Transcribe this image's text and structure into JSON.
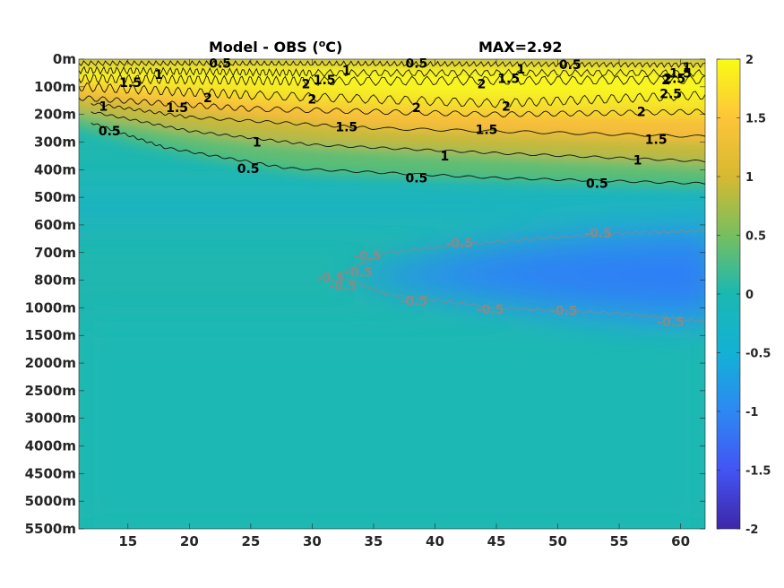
{
  "chart_data": {
    "type": "heatmap",
    "title": "Model - OBS (",
    "title_unit": "o",
    "title_unit_tail": "C)",
    "max_label": "MAX=2.92",
    "x": {
      "ticks": [
        15,
        20,
        25,
        30,
        35,
        40,
        45,
        50,
        55,
        60
      ],
      "range": [
        11,
        62
      ]
    },
    "y": {
      "ticks": [
        "0m",
        "100m",
        "200m",
        "300m",
        "400m",
        "500m",
        "600m",
        "700m",
        "800m",
        "1000m",
        "1500m",
        "2000m",
        "2500m",
        "3000m",
        "4000m",
        "4500m",
        "5000m",
        "5500m"
      ]
    },
    "colorbar": {
      "range": [
        -2,
        2
      ],
      "ticks": [
        "2",
        "1.5",
        "1",
        "0.5",
        "0",
        "-0.5",
        "-1",
        "-1.5",
        "-2"
      ],
      "colormap": "parula"
    },
    "contours": {
      "positive_color": "#000000",
      "negative_color": "#8a8a8a",
      "labels": [
        {
          "text": "0.5",
          "x": 22.5,
          "y": 0.15
        },
        {
          "text": "1",
          "x": 17.5,
          "y": 0.55
        },
        {
          "text": "1.5",
          "x": 15.2,
          "y": 0.85
        },
        {
          "text": "1",
          "x": 13.0,
          "y": 1.7
        },
        {
          "text": "0.5",
          "x": 13.5,
          "y": 2.6
        },
        {
          "text": "1.5",
          "x": 19.0,
          "y": 1.75
        },
        {
          "text": "2",
          "x": 21.5,
          "y": 1.4
        },
        {
          "text": "1",
          "x": 25.5,
          "y": 3.0
        },
        {
          "text": "0.5",
          "x": 24.8,
          "y": 3.95
        },
        {
          "text": "2",
          "x": 29.5,
          "y": 0.9
        },
        {
          "text": "1.5",
          "x": 31.0,
          "y": 0.75
        },
        {
          "text": "1",
          "x": 32.8,
          "y": 0.4
        },
        {
          "text": "2",
          "x": 30.0,
          "y": 1.45
        },
        {
          "text": "1.5",
          "x": 32.8,
          "y": 2.45
        },
        {
          "text": "0.5",
          "x": 38.5,
          "y": 0.15
        },
        {
          "text": "2",
          "x": 38.5,
          "y": 1.75
        },
        {
          "text": "1",
          "x": 40.8,
          "y": 3.5
        },
        {
          "text": "0.5",
          "x": 38.5,
          "y": 4.3
        },
        {
          "text": "1",
          "x": 47.0,
          "y": 0.35
        },
        {
          "text": "1.5",
          "x": 46.0,
          "y": 0.7
        },
        {
          "text": "2",
          "x": 43.8,
          "y": 0.9
        },
        {
          "text": "2",
          "x": 45.8,
          "y": 1.7
        },
        {
          "text": "1.5",
          "x": 44.2,
          "y": 2.55
        },
        {
          "text": "0.5",
          "x": 51.0,
          "y": 0.2
        },
        {
          "text": "2",
          "x": 56.8,
          "y": 1.9
        },
        {
          "text": "1.5",
          "x": 58.0,
          "y": 2.9
        },
        {
          "text": "1",
          "x": 56.5,
          "y": 3.65
        },
        {
          "text": "0.5",
          "x": 53.2,
          "y": 4.5
        },
        {
          "text": "1",
          "x": 60.5,
          "y": 0.3
        },
        {
          "text": "1.5",
          "x": 60.0,
          "y": 0.5
        },
        {
          "text": "2.5",
          "x": 59.5,
          "y": 0.7
        },
        {
          "text": "2",
          "x": 58.8,
          "y": 0.75
        },
        {
          "text": "2.5",
          "x": 59.2,
          "y": 1.25
        },
        {
          "text": "-0.5",
          "x": 34.5,
          "y": 7.1
        },
        {
          "text": "-0.5",
          "x": 31.5,
          "y": 7.9
        },
        {
          "text": "-0.5",
          "x": 32.5,
          "y": 8.2
        },
        {
          "text": "-0.5",
          "x": 33.8,
          "y": 7.7
        },
        {
          "text": "-0.5",
          "x": 42.0,
          "y": 6.65
        },
        {
          "text": "-0.5",
          "x": 53.3,
          "y": 6.3
        },
        {
          "text": "-0.5",
          "x": 38.3,
          "y": 8.75
        },
        {
          "text": "-0.5",
          "x": 44.5,
          "y": 9.05
        },
        {
          "text": "-0.5",
          "x": 50.5,
          "y": 9.1
        },
        {
          "text": "-0.5",
          "x": 59.2,
          "y": 9.5
        }
      ]
    }
  }
}
